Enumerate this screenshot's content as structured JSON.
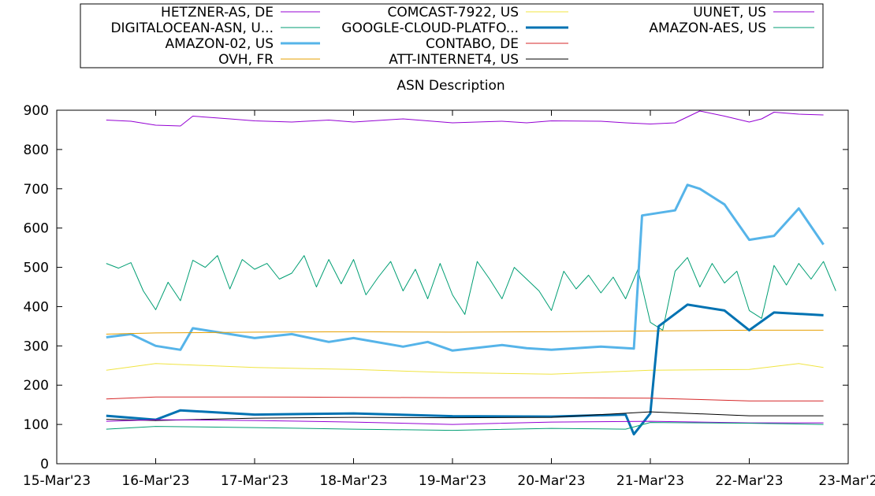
{
  "chart_data": {
    "type": "line",
    "title": "ASN Description",
    "xlabel": "",
    "ylabel": "",
    "xlim": [
      "2023-03-15",
      "2023-03-23"
    ],
    "ylim": [
      0,
      900
    ],
    "y_ticks": [
      0,
      100,
      200,
      300,
      400,
      500,
      600,
      700,
      800,
      900
    ],
    "x_ticks": [
      {
        "date": "2023-03-15",
        "label": "15-Mar'23"
      },
      {
        "date": "2023-03-16",
        "label": "16-Mar'23"
      },
      {
        "date": "2023-03-17",
        "label": "17-Mar'23"
      },
      {
        "date": "2023-03-18",
        "label": "18-Mar'23"
      },
      {
        "date": "2023-03-19",
        "label": "19-Mar'23"
      },
      {
        "date": "2023-03-20",
        "label": "20-Mar'23"
      },
      {
        "date": "2023-03-21",
        "label": "21-Mar'23"
      },
      {
        "date": "2023-03-22",
        "label": "22-Mar'23"
      },
      {
        "date": "2023-03-23",
        "label": "23-Mar'2"
      }
    ],
    "grid": false,
    "legend": "top-outside, three columns, boxed",
    "series": [
      {
        "name": "HETZNER-AS, DE",
        "color": "#9400d3",
        "width": 1,
        "points": [
          [
            "2023-03-15 12:00",
            875
          ],
          [
            "2023-03-15 18:00",
            872
          ],
          [
            "2023-03-16 00:00",
            862
          ],
          [
            "2023-03-16 06:00",
            860
          ],
          [
            "2023-03-16 09:00",
            885
          ],
          [
            "2023-03-16 18:00",
            878
          ],
          [
            "2023-03-17 00:00",
            873
          ],
          [
            "2023-03-17 09:00",
            870
          ],
          [
            "2023-03-17 18:00",
            875
          ],
          [
            "2023-03-18 00:00",
            870
          ],
          [
            "2023-03-18 12:00",
            878
          ],
          [
            "2023-03-18 18:00",
            873
          ],
          [
            "2023-03-19 00:00",
            868
          ],
          [
            "2023-03-19 12:00",
            872
          ],
          [
            "2023-03-19 18:00",
            868
          ],
          [
            "2023-03-20 00:00",
            873
          ],
          [
            "2023-03-20 12:00",
            872
          ],
          [
            "2023-03-20 18:00",
            868
          ],
          [
            "2023-03-21 00:00",
            865
          ],
          [
            "2023-03-21 06:00",
            868
          ],
          [
            "2023-03-21 12:00",
            898
          ],
          [
            "2023-03-21 18:00",
            885
          ],
          [
            "2023-03-22 00:00",
            870
          ],
          [
            "2023-03-22 03:00",
            878
          ],
          [
            "2023-03-22 06:00",
            895
          ],
          [
            "2023-03-22 12:00",
            890
          ],
          [
            "2023-03-22 18:00",
            888
          ]
        ]
      },
      {
        "name": "DIGITALOCEAN-ASN, U...",
        "color": "#009e73",
        "width": 1,
        "points": [
          [
            "2023-03-15 12:00",
            510
          ],
          [
            "2023-03-15 15:00",
            498
          ],
          [
            "2023-03-15 18:00",
            512
          ],
          [
            "2023-03-15 21:00",
            440
          ],
          [
            "2023-03-16 00:00",
            392
          ],
          [
            "2023-03-16 03:00",
            462
          ],
          [
            "2023-03-16 06:00",
            415
          ],
          [
            "2023-03-16 09:00",
            518
          ],
          [
            "2023-03-16 12:00",
            500
          ],
          [
            "2023-03-16 15:00",
            530
          ],
          [
            "2023-03-16 18:00",
            445
          ],
          [
            "2023-03-16 21:00",
            520
          ],
          [
            "2023-03-17 00:00",
            495
          ],
          [
            "2023-03-17 03:00",
            510
          ],
          [
            "2023-03-17 06:00",
            470
          ],
          [
            "2023-03-17 09:00",
            485
          ],
          [
            "2023-03-17 12:00",
            530
          ],
          [
            "2023-03-17 15:00",
            450
          ],
          [
            "2023-03-17 18:00",
            520
          ],
          [
            "2023-03-17 21:00",
            458
          ],
          [
            "2023-03-18 00:00",
            520
          ],
          [
            "2023-03-18 03:00",
            430
          ],
          [
            "2023-03-18 06:00",
            475
          ],
          [
            "2023-03-18 09:00",
            515
          ],
          [
            "2023-03-18 12:00",
            440
          ],
          [
            "2023-03-18 15:00",
            495
          ],
          [
            "2023-03-18 18:00",
            420
          ],
          [
            "2023-03-18 21:00",
            510
          ],
          [
            "2023-03-19 00:00",
            430
          ],
          [
            "2023-03-19 03:00",
            380
          ],
          [
            "2023-03-19 06:00",
            515
          ],
          [
            "2023-03-19 09:00",
            470
          ],
          [
            "2023-03-19 12:00",
            420
          ],
          [
            "2023-03-19 15:00",
            500
          ],
          [
            "2023-03-19 18:00",
            470
          ],
          [
            "2023-03-19 21:00",
            440
          ],
          [
            "2023-03-20 00:00",
            390
          ],
          [
            "2023-03-20 03:00",
            490
          ],
          [
            "2023-03-20 06:00",
            445
          ],
          [
            "2023-03-20 09:00",
            480
          ],
          [
            "2023-03-20 12:00",
            435
          ],
          [
            "2023-03-20 15:00",
            475
          ],
          [
            "2023-03-20 18:00",
            420
          ],
          [
            "2023-03-20 21:00",
            495
          ],
          [
            "2023-03-21 00:00",
            360
          ],
          [
            "2023-03-21 03:00",
            340
          ],
          [
            "2023-03-21 06:00",
            490
          ],
          [
            "2023-03-21 09:00",
            525
          ],
          [
            "2023-03-21 12:00",
            450
          ],
          [
            "2023-03-21 15:00",
            510
          ],
          [
            "2023-03-21 18:00",
            460
          ],
          [
            "2023-03-21 21:00",
            490
          ],
          [
            "2023-03-22 00:00",
            390
          ],
          [
            "2023-03-22 03:00",
            370
          ],
          [
            "2023-03-22 06:00",
            505
          ],
          [
            "2023-03-22 09:00",
            455
          ],
          [
            "2023-03-22 12:00",
            510
          ],
          [
            "2023-03-22 15:00",
            470
          ],
          [
            "2023-03-22 18:00",
            515
          ],
          [
            "2023-03-22 21:00",
            440
          ]
        ]
      },
      {
        "name": "AMAZON-02, US",
        "color": "#56b4e9",
        "width": 3,
        "points": [
          [
            "2023-03-15 12:00",
            322
          ],
          [
            "2023-03-15 18:00",
            330
          ],
          [
            "2023-03-16 00:00",
            300
          ],
          [
            "2023-03-16 06:00",
            290
          ],
          [
            "2023-03-16 09:00",
            345
          ],
          [
            "2023-03-16 18:00",
            330
          ],
          [
            "2023-03-17 00:00",
            320
          ],
          [
            "2023-03-17 09:00",
            330
          ],
          [
            "2023-03-17 18:00",
            310
          ],
          [
            "2023-03-18 00:00",
            320
          ],
          [
            "2023-03-18 12:00",
            298
          ],
          [
            "2023-03-18 18:00",
            310
          ],
          [
            "2023-03-19 00:00",
            288
          ],
          [
            "2023-03-19 12:00",
            302
          ],
          [
            "2023-03-19 18:00",
            294
          ],
          [
            "2023-03-20 00:00",
            290
          ],
          [
            "2023-03-20 12:00",
            298
          ],
          [
            "2023-03-20 20:00",
            293
          ],
          [
            "2023-03-20 22:00",
            632
          ],
          [
            "2023-03-21 06:00",
            645
          ],
          [
            "2023-03-21 09:00",
            710
          ],
          [
            "2023-03-21 12:00",
            700
          ],
          [
            "2023-03-21 18:00",
            660
          ],
          [
            "2023-03-22 00:00",
            570
          ],
          [
            "2023-03-22 06:00",
            580
          ],
          [
            "2023-03-22 12:00",
            650
          ],
          [
            "2023-03-22 18:00",
            558
          ]
        ]
      },
      {
        "name": "OVH, FR",
        "color": "#e69f00",
        "width": 1,
        "points": [
          [
            "2023-03-15 12:00",
            330
          ],
          [
            "2023-03-16 00:00",
            333
          ],
          [
            "2023-03-17 00:00",
            335
          ],
          [
            "2023-03-18 00:00",
            336
          ],
          [
            "2023-03-19 00:00",
            335
          ],
          [
            "2023-03-20 00:00",
            336
          ],
          [
            "2023-03-21 00:00",
            338
          ],
          [
            "2023-03-22 00:00",
            340
          ],
          [
            "2023-03-22 18:00",
            340
          ]
        ]
      },
      {
        "name": "COMCAST-7922, US",
        "color": "#f0e442",
        "width": 1,
        "points": [
          [
            "2023-03-15 12:00",
            238
          ],
          [
            "2023-03-16 00:00",
            255
          ],
          [
            "2023-03-17 00:00",
            245
          ],
          [
            "2023-03-18 00:00",
            240
          ],
          [
            "2023-03-19 00:00",
            232
          ],
          [
            "2023-03-20 00:00",
            228
          ],
          [
            "2023-03-21 00:00",
            238
          ],
          [
            "2023-03-22 00:00",
            240
          ],
          [
            "2023-03-22 12:00",
            255
          ],
          [
            "2023-03-22 18:00",
            245
          ]
        ]
      },
      {
        "name": "GOOGLE-CLOUD-PLATFO...",
        "color": "#0072b2",
        "width": 3,
        "points": [
          [
            "2023-03-15 12:00",
            122
          ],
          [
            "2023-03-16 00:00",
            112
          ],
          [
            "2023-03-16 06:00",
            136
          ],
          [
            "2023-03-17 00:00",
            125
          ],
          [
            "2023-03-18 00:00",
            128
          ],
          [
            "2023-03-19 00:00",
            121
          ],
          [
            "2023-03-20 00:00",
            120
          ],
          [
            "2023-03-20 18:00",
            125
          ],
          [
            "2023-03-20 20:00",
            75
          ],
          [
            "2023-03-21 00:00",
            128
          ],
          [
            "2023-03-21 02:00",
            350
          ],
          [
            "2023-03-21 09:00",
            405
          ],
          [
            "2023-03-21 18:00",
            390
          ],
          [
            "2023-03-22 00:00",
            340
          ],
          [
            "2023-03-22 06:00",
            385
          ],
          [
            "2023-03-22 18:00",
            378
          ]
        ]
      },
      {
        "name": "CONTABO, DE",
        "color": "#d62728",
        "width": 1,
        "points": [
          [
            "2023-03-15 12:00",
            165
          ],
          [
            "2023-03-16 00:00",
            170
          ],
          [
            "2023-03-17 00:00",
            170
          ],
          [
            "2023-03-18 00:00",
            169
          ],
          [
            "2023-03-19 00:00",
            168
          ],
          [
            "2023-03-20 00:00",
            168
          ],
          [
            "2023-03-21 00:00",
            167
          ],
          [
            "2023-03-22 00:00",
            160
          ],
          [
            "2023-03-22 18:00",
            160
          ]
        ]
      },
      {
        "name": "ATT-INTERNET4, US",
        "color": "#000000",
        "width": 1,
        "points": [
          [
            "2023-03-15 12:00",
            113
          ],
          [
            "2023-03-16 00:00",
            110
          ],
          [
            "2023-03-17 00:00",
            116
          ],
          [
            "2023-03-18 00:00",
            118
          ],
          [
            "2023-03-19 00:00",
            117
          ],
          [
            "2023-03-20 00:00",
            118
          ],
          [
            "2023-03-21 00:00",
            132
          ],
          [
            "2023-03-22 00:00",
            122
          ],
          [
            "2023-03-22 18:00",
            122
          ]
        ]
      },
      {
        "name": "UUNET, US",
        "color": "#9400d3",
        "width": 1,
        "points": [
          [
            "2023-03-15 12:00",
            108
          ],
          [
            "2023-03-16 00:00",
            112
          ],
          [
            "2023-03-17 00:00",
            110
          ],
          [
            "2023-03-18 00:00",
            106
          ],
          [
            "2023-03-19 00:00",
            100
          ],
          [
            "2023-03-20 00:00",
            106
          ],
          [
            "2023-03-21 00:00",
            108
          ],
          [
            "2023-03-22 00:00",
            104
          ],
          [
            "2023-03-22 18:00",
            104
          ]
        ]
      },
      {
        "name": "AMAZON-AES, US",
        "color": "#009e73",
        "width": 1,
        "points": [
          [
            "2023-03-15 12:00",
            88
          ],
          [
            "2023-03-16 00:00",
            95
          ],
          [
            "2023-03-17 00:00",
            92
          ],
          [
            "2023-03-18 00:00",
            88
          ],
          [
            "2023-03-19 00:00",
            85
          ],
          [
            "2023-03-20 00:00",
            90
          ],
          [
            "2023-03-20 18:00",
            88
          ],
          [
            "2023-03-21 00:00",
            105
          ],
          [
            "2023-03-22 00:00",
            103
          ],
          [
            "2023-03-22 18:00",
            100
          ]
        ]
      }
    ]
  }
}
